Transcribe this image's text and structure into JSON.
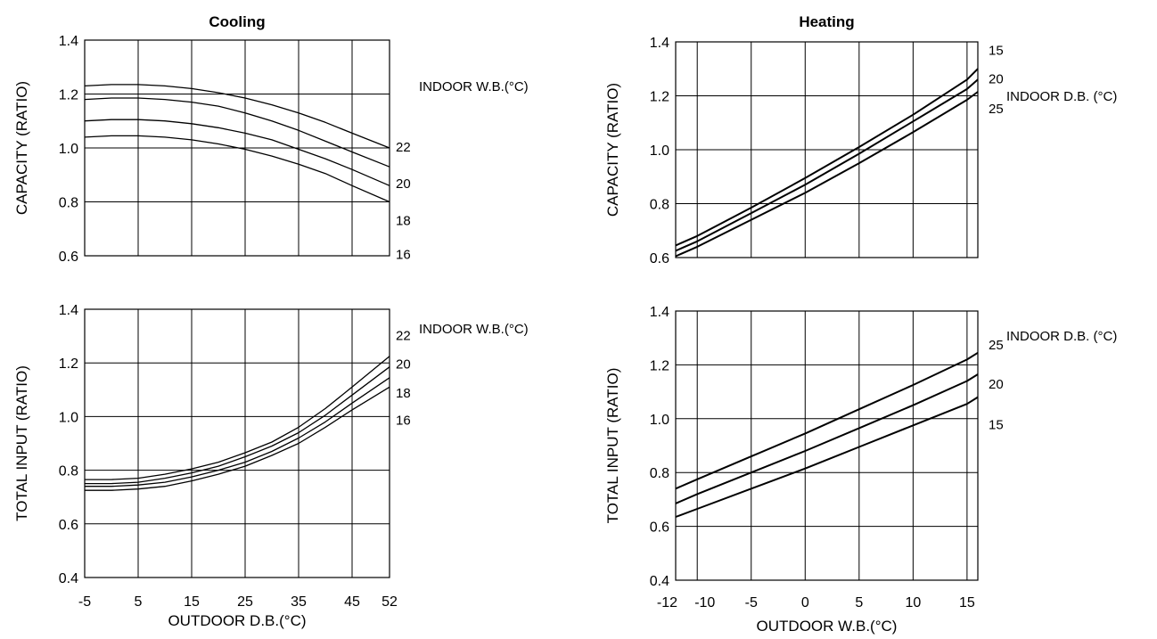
{
  "chart_data": [
    {
      "type": "line",
      "title": "Cooling",
      "xlabel": "OUTDOOR D.B.(°C)",
      "x_ticks": [
        "-5",
        "5",
        "15",
        "25",
        "35",
        "45",
        "52"
      ],
      "xlim": [
        -5,
        52
      ],
      "grid": true,
      "panels": [
        {
          "ylabel": "CAPACITY (RATIO)",
          "y_ticks": [
            "0.6",
            "0.8",
            "1.0",
            "1.2",
            "1.4"
          ],
          "ylim": [
            0.6,
            1.4
          ],
          "annotation": "INDOOR W.B.(°C)",
          "series": [
            {
              "name": "22",
              "x": [
                -5,
                0,
                5,
                10,
                15,
                20,
                25,
                30,
                35,
                40,
                45,
                52
              ],
              "y": [
                1.23,
                1.235,
                1.235,
                1.23,
                1.22,
                1.205,
                1.185,
                1.16,
                1.13,
                1.095,
                1.055,
                1.0
              ]
            },
            {
              "name": "20",
              "x": [
                -5,
                0,
                5,
                10,
                15,
                20,
                25,
                30,
                35,
                40,
                45,
                52
              ],
              "y": [
                1.18,
                1.185,
                1.185,
                1.18,
                1.17,
                1.155,
                1.13,
                1.1,
                1.065,
                1.025,
                0.985,
                0.93
              ]
            },
            {
              "name": "18",
              "x": [
                -5,
                0,
                5,
                10,
                15,
                20,
                25,
                30,
                35,
                40,
                45,
                52
              ],
              "y": [
                1.1,
                1.105,
                1.105,
                1.1,
                1.09,
                1.075,
                1.055,
                1.03,
                0.995,
                0.96,
                0.92,
                0.86
              ]
            },
            {
              "name": "16",
              "x": [
                -5,
                0,
                5,
                10,
                15,
                20,
                25,
                30,
                35,
                40,
                45,
                52
              ],
              "y": [
                1.04,
                1.045,
                1.045,
                1.04,
                1.03,
                1.015,
                0.995,
                0.97,
                0.94,
                0.905,
                0.86,
                0.8
              ]
            }
          ]
        },
        {
          "ylabel": "TOTAL INPUT (RATIO)",
          "y_ticks": [
            "0.4",
            "0.6",
            "0.8",
            "1.0",
            "1.2",
            "1.4"
          ],
          "ylim": [
            0.4,
            1.4
          ],
          "annotation": "INDOOR W.B.(°C)",
          "series": [
            {
              "name": "22",
              "x": [
                -5,
                0,
                5,
                10,
                15,
                20,
                25,
                30,
                35,
                40,
                45,
                52
              ],
              "y": [
                0.765,
                0.765,
                0.77,
                0.785,
                0.805,
                0.83,
                0.865,
                0.905,
                0.96,
                1.03,
                1.11,
                1.225
              ]
            },
            {
              "name": "20",
              "x": [
                -5,
                0,
                5,
                10,
                15,
                20,
                25,
                30,
                35,
                40,
                45,
                52
              ],
              "y": [
                0.75,
                0.75,
                0.755,
                0.77,
                0.79,
                0.815,
                0.85,
                0.89,
                0.94,
                1.005,
                1.08,
                1.185
              ]
            },
            {
              "name": "18",
              "x": [
                -5,
                0,
                5,
                10,
                15,
                20,
                25,
                30,
                35,
                40,
                45,
                52
              ],
              "y": [
                0.74,
                0.74,
                0.745,
                0.755,
                0.775,
                0.8,
                0.83,
                0.87,
                0.92,
                0.98,
                1.05,
                1.145
              ]
            },
            {
              "name": "16",
              "x": [
                -5,
                0,
                5,
                10,
                15,
                20,
                25,
                30,
                35,
                40,
                45,
                52
              ],
              "y": [
                0.725,
                0.725,
                0.73,
                0.74,
                0.76,
                0.785,
                0.815,
                0.855,
                0.9,
                0.96,
                1.025,
                1.11
              ]
            }
          ]
        }
      ]
    },
    {
      "type": "line",
      "title": "Heating",
      "xlabel": "OUTDOOR W.B.(°C)",
      "x_ticks": [
        "-12",
        "-10",
        "-5",
        "0",
        "5",
        "10",
        "15"
      ],
      "xlim": [
        -12,
        16
      ],
      "grid": true,
      "panels": [
        {
          "ylabel": "CAPACITY (RATIO)",
          "y_ticks": [
            "0.6",
            "0.8",
            "1.0",
            "1.2",
            "1.4"
          ],
          "ylim": [
            0.6,
            1.4
          ],
          "annotation": "INDOOR D.B. (°C)",
          "series": [
            {
              "name": "15",
              "x": [
                -12,
                -10,
                -5,
                0,
                5,
                10,
                15,
                16
              ],
              "y": [
                0.645,
                0.68,
                0.785,
                0.895,
                1.01,
                1.13,
                1.26,
                1.3
              ]
            },
            {
              "name": "20",
              "x": [
                -12,
                -10,
                -5,
                0,
                5,
                10,
                15,
                16
              ],
              "y": [
                0.625,
                0.66,
                0.765,
                0.87,
                0.985,
                1.105,
                1.225,
                1.26
              ]
            },
            {
              "name": "25",
              "x": [
                -12,
                -10,
                -5,
                0,
                5,
                10,
                15,
                16
              ],
              "y": [
                0.605,
                0.64,
                0.74,
                0.84,
                0.95,
                1.065,
                1.185,
                1.215
              ]
            }
          ]
        },
        {
          "ylabel": "TOTAL INPUT (RATIO)",
          "y_ticks": [
            "0.4",
            "0.6",
            "0.8",
            "1.0",
            "1.2",
            "1.4"
          ],
          "ylim": [
            0.4,
            1.4
          ],
          "annotation": "INDOOR D.B. (°C)",
          "series": [
            {
              "name": "25",
              "x": [
                -12,
                -10,
                -5,
                0,
                5,
                10,
                15,
                16
              ],
              "y": [
                0.74,
                0.775,
                0.86,
                0.945,
                1.035,
                1.125,
                1.22,
                1.245
              ]
            },
            {
              "name": "20",
              "x": [
                -12,
                -10,
                -5,
                0,
                5,
                10,
                15,
                16
              ],
              "y": [
                0.685,
                0.72,
                0.8,
                0.88,
                0.965,
                1.05,
                1.14,
                1.165
              ]
            },
            {
              "name": "15",
              "x": [
                -12,
                -10,
                -5,
                0,
                5,
                10,
                15,
                16
              ],
              "y": [
                0.635,
                0.665,
                0.74,
                0.815,
                0.895,
                0.975,
                1.055,
                1.08
              ]
            }
          ]
        }
      ]
    }
  ]
}
